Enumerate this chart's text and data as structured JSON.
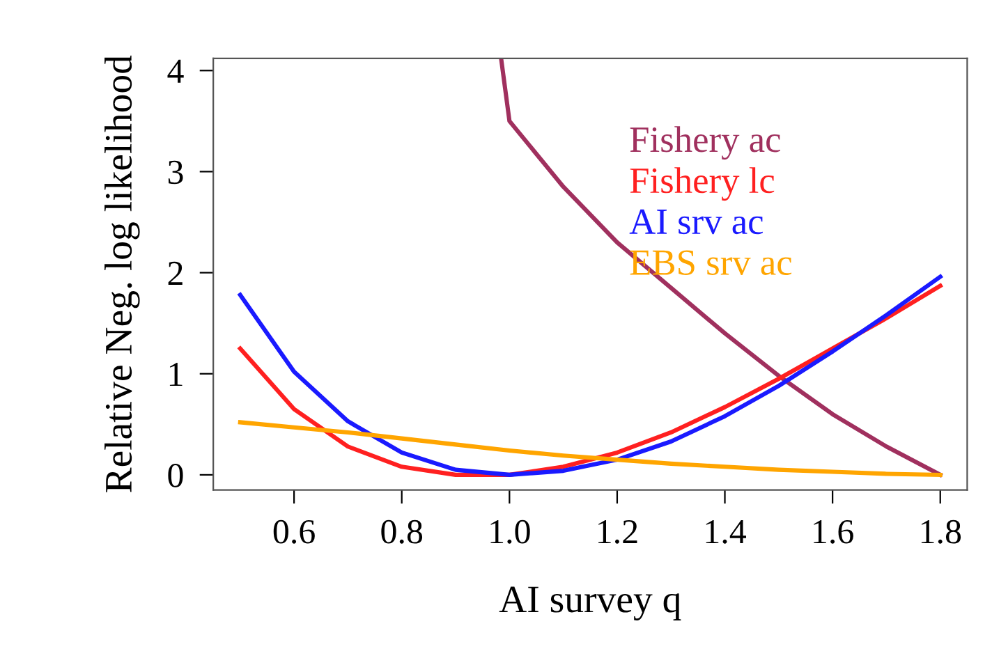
{
  "chart_data": {
    "type": "line",
    "xlabel": "AI survey q",
    "ylabel": "Relative Neg. log likelihood",
    "x": [
      0.5,
      0.6,
      0.7,
      0.8,
      0.9,
      1.0,
      1.1,
      1.2,
      1.3,
      1.4,
      1.5,
      1.6,
      1.7,
      1.8
    ],
    "series": [
      {
        "name": "Fishery ac",
        "color": "#a0305e",
        "x": [
          0.985,
          1.0,
          1.1,
          1.2,
          1.3,
          1.4,
          1.5,
          1.6,
          1.7,
          1.8
        ],
        "values": [
          4.1,
          3.5,
          2.85,
          2.3,
          1.85,
          1.4,
          0.98,
          0.6,
          0.28,
          0.0
        ]
      },
      {
        "name": "Fishery lc",
        "color": "#ff2020",
        "values": [
          1.25,
          0.65,
          0.28,
          0.08,
          0.0,
          0.0,
          0.08,
          0.22,
          0.42,
          0.67,
          0.95,
          1.25,
          1.55,
          1.87
        ]
      },
      {
        "name": "AI srv ac",
        "color": "#1a1aff",
        "values": [
          1.78,
          1.02,
          0.53,
          0.22,
          0.05,
          0.0,
          0.04,
          0.15,
          0.33,
          0.58,
          0.88,
          1.22,
          1.58,
          1.96
        ]
      },
      {
        "name": "EBS srv ac",
        "color": "#ffa500",
        "values": [
          0.52,
          0.47,
          0.42,
          0.36,
          0.3,
          0.24,
          0.19,
          0.15,
          0.11,
          0.08,
          0.05,
          0.03,
          0.01,
          0.0
        ]
      }
    ],
    "xlim": [
      0.45,
      1.85
    ],
    "ylim": [
      -0.15,
      4.12
    ],
    "xticks": [
      {
        "value": 0.6,
        "label": "0.6"
      },
      {
        "value": 0.8,
        "label": "0.8"
      },
      {
        "value": 1.0,
        "label": "1.0"
      },
      {
        "value": 1.2,
        "label": "1.2"
      },
      {
        "value": 1.4,
        "label": "1.4"
      },
      {
        "value": 1.6,
        "label": "1.6"
      },
      {
        "value": 1.8,
        "label": "1.8"
      }
    ],
    "yticks": [
      0,
      1,
      2,
      3,
      4
    ],
    "grid": false,
    "legend": "top",
    "marker": "none",
    "line_style": "solid"
  }
}
